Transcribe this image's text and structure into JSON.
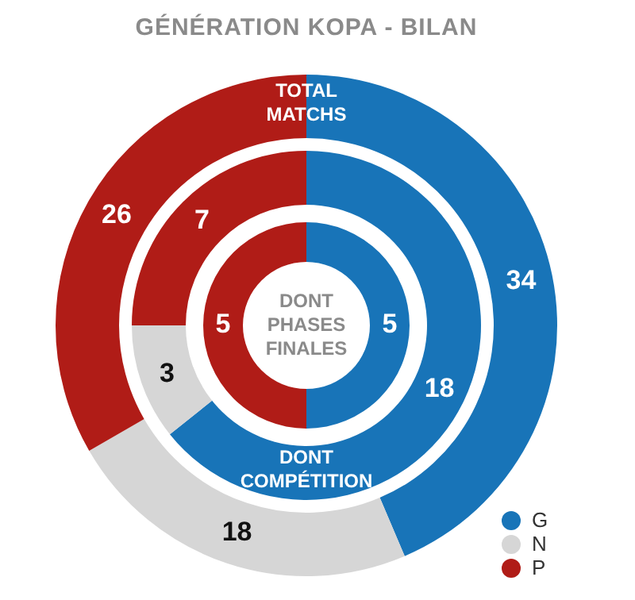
{
  "chart_data": {
    "type": "donut",
    "title": "GÉNÉRATION KOPA - BILAN",
    "categories": [
      "G",
      "N",
      "P"
    ],
    "colors": [
      "#1874b8",
      "#d6d6d6",
      "#b01c17"
    ],
    "series": [
      {
        "name": "TOTAL MATCHS",
        "values": [
          34,
          18,
          26
        ],
        "value_labels": [
          "34",
          "18",
          "26"
        ]
      },
      {
        "name": "DONT COMPÉTITION",
        "values": [
          18,
          3,
          7
        ],
        "value_labels": [
          "18",
          "3",
          "7"
        ]
      },
      {
        "name": "DONT PHASES FINALES",
        "values": [
          5,
          0,
          5
        ],
        "value_labels": [
          "5",
          null,
          "5"
        ]
      }
    ],
    "legend": "bottom right"
  }
}
